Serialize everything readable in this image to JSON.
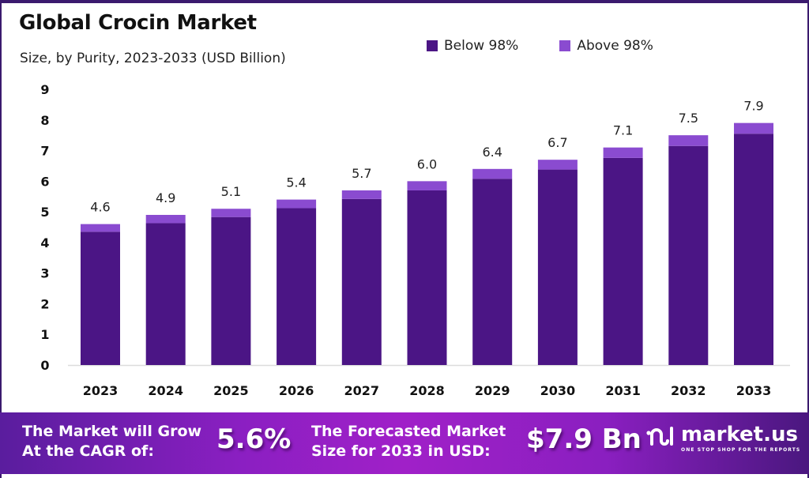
{
  "header": {
    "title": "Global Crocin Market",
    "subtitle": "Size, by Purity, 2023-2033 (USD Billion)"
  },
  "legend": [
    {
      "label": "Below 98%",
      "color": "#4b1585"
    },
    {
      "label": "Above 98%",
      "color": "#8a4bd0"
    }
  ],
  "banner": {
    "cagr_label_line1": "The Market will Grow",
    "cagr_label_line2": "At the CAGR of:",
    "cagr_value": "5.6%",
    "forecast_label_line1": "The Forecasted Market",
    "forecast_label_line2": "Size for 2033 in USD:",
    "forecast_value": "$7.9 Bn",
    "brand_name": "market.us",
    "brand_tagline": "ONE STOP SHOP FOR THE REPORTS"
  },
  "chart_data": {
    "type": "bar",
    "stacked": true,
    "title": "Global Crocin Market",
    "subtitle": "Size, by Purity, 2023-2033 (USD Billion)",
    "xlabel": "",
    "ylabel": "",
    "ylim": [
      0,
      9
    ],
    "yticks": [
      0,
      1,
      2,
      3,
      4,
      5,
      6,
      7,
      8,
      9
    ],
    "grid": false,
    "legend_position": "top-right",
    "categories": [
      "2023",
      "2024",
      "2025",
      "2026",
      "2027",
      "2028",
      "2029",
      "2030",
      "2031",
      "2032",
      "2033"
    ],
    "series": [
      {
        "name": "Below 98%",
        "color": "#4b1585",
        "values": [
          4.35,
          4.63,
          4.83,
          5.12,
          5.42,
          5.7,
          6.08,
          6.38,
          6.76,
          7.15,
          7.55
        ]
      },
      {
        "name": "Above 98%",
        "color": "#8a4bd0",
        "values": [
          0.25,
          0.27,
          0.27,
          0.28,
          0.28,
          0.3,
          0.32,
          0.32,
          0.34,
          0.35,
          0.35
        ]
      }
    ],
    "totals": [
      4.6,
      4.9,
      5.1,
      5.4,
      5.7,
      6.0,
      6.4,
      6.7,
      7.1,
      7.5,
      7.9
    ],
    "total_labels": [
      "4.6",
      "4.9",
      "5.1",
      "5.4",
      "5.7",
      "6.0",
      "6.4",
      "6.7",
      "7.1",
      "7.5",
      "7.9"
    ]
  }
}
